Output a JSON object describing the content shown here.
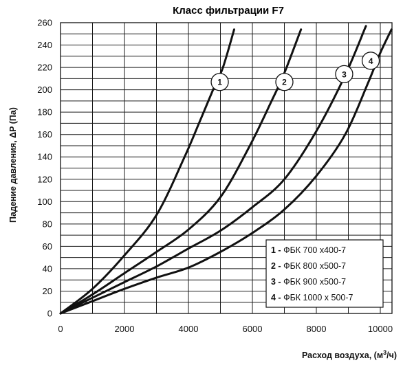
{
  "chart_data": {
    "type": "line",
    "title": "Класс фильтрации F7",
    "xlabel": "Расход воздуха, (м",
    "xlabel_sup": "3",
    "xlabel_end": "/ч)",
    "ylabel": "Падение давления, ΔP (Па)",
    "xlim": [
      0,
      10400
    ],
    "ylim": [
      0,
      260
    ],
    "xticks": [
      0,
      2000,
      4000,
      6000,
      8000,
      10000
    ],
    "yticks": [
      0,
      20,
      40,
      60,
      80,
      100,
      120,
      140,
      160,
      180,
      200,
      220,
      240,
      260
    ],
    "xtick_labels": [
      "0",
      "2000",
      "4000",
      "6000",
      "8000",
      "10000"
    ],
    "ytick_labels": [
      "0",
      "20",
      "40",
      "60",
      "80",
      "100",
      "120",
      "140",
      "160",
      "180",
      "200",
      "220",
      "240",
      "260"
    ],
    "grid": true,
    "legend_position": "bottom-right",
    "series": [
      {
        "name": "ФБК 700 x400-7",
        "marker": "1",
        "marker_at": [
          4980,
          207
        ],
        "points": [
          [
            0,
            0
          ],
          [
            1000,
            22
          ],
          [
            2000,
            52
          ],
          [
            3000,
            88
          ],
          [
            3880,
            140
          ],
          [
            4330,
            170
          ],
          [
            4770,
            200
          ],
          [
            5080,
            220
          ],
          [
            5430,
            254
          ]
        ]
      },
      {
        "name": "ФБК 800 x500-7",
        "marker": "2",
        "marker_at": [
          7000,
          207
        ],
        "points": [
          [
            0,
            0
          ],
          [
            1000,
            17
          ],
          [
            2000,
            36
          ],
          [
            3000,
            55
          ],
          [
            4000,
            75
          ],
          [
            5000,
            104
          ],
          [
            5920,
            150
          ],
          [
            6600,
            190
          ],
          [
            7000,
            215
          ],
          [
            7520,
            254
          ]
        ]
      },
      {
        "name": "ФБК 900 x500-7",
        "marker": "3",
        "marker_at": [
          8870,
          214
        ],
        "points": [
          [
            0,
            0
          ],
          [
            1000,
            14
          ],
          [
            2000,
            28
          ],
          [
            3000,
            42
          ],
          [
            4000,
            58
          ],
          [
            5000,
            74
          ],
          [
            6000,
            95
          ],
          [
            7000,
            120
          ],
          [
            8000,
            163
          ],
          [
            8900,
            213
          ],
          [
            9550,
            257
          ]
        ]
      },
      {
        "name": "ФБК 1000 x 500-7",
        "marker": "4",
        "marker_at": [
          9700,
          226
        ],
        "points": [
          [
            0,
            0
          ],
          [
            1000,
            11
          ],
          [
            2000,
            22
          ],
          [
            3000,
            32
          ],
          [
            4000,
            41
          ],
          [
            5000,
            55
          ],
          [
            6000,
            72
          ],
          [
            7000,
            93
          ],
          [
            8000,
            123
          ],
          [
            8900,
            160
          ],
          [
            9600,
            205
          ],
          [
            10000,
            233
          ],
          [
            10350,
            254
          ]
        ]
      }
    ]
  }
}
